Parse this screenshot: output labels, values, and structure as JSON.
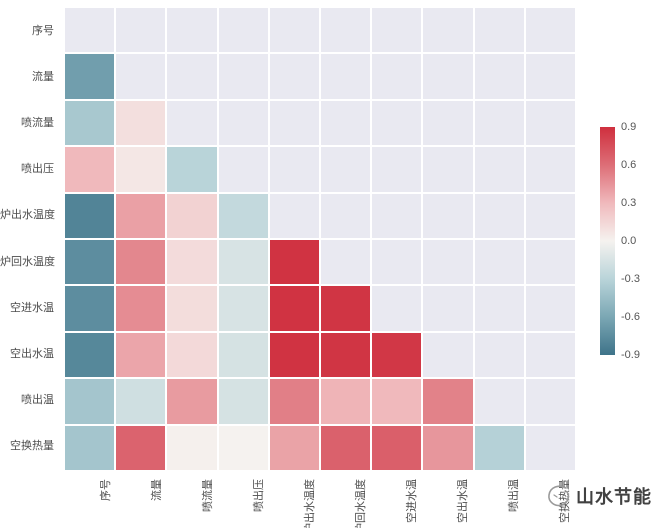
{
  "watermark": {
    "brand": "山水节能"
  },
  "chart_data": {
    "type": "heatmap",
    "title": "",
    "subtitle": "",
    "description": "lower-triangular correlation heatmap, diagonal and upper triangle masked",
    "labels": [
      "序号",
      "流量",
      "喷流量",
      "喷出压",
      "炉出水温度",
      "炉回水温度",
      "空进水温",
      "空出水温",
      "喷出温",
      "空换热量"
    ],
    "matrix": [
      [
        null,
        null,
        null,
        null,
        null,
        null,
        null,
        null,
        null,
        null
      ],
      [
        -0.65,
        null,
        null,
        null,
        null,
        null,
        null,
        null,
        null,
        null
      ],
      [
        -0.38,
        0.1,
        null,
        null,
        null,
        null,
        null,
        null,
        null,
        null
      ],
      [
        0.3,
        0.06,
        -0.3,
        null,
        null,
        null,
        null,
        null,
        null,
        null
      ],
      [
        -0.8,
        0.4,
        0.17,
        -0.25,
        null,
        null,
        null,
        null,
        null,
        null
      ],
      [
        -0.75,
        0.5,
        0.12,
        -0.15,
        0.88,
        null,
        null,
        null,
        null,
        null
      ],
      [
        -0.75,
        0.48,
        0.11,
        -0.15,
        0.88,
        0.87,
        null,
        null,
        null,
        null
      ],
      [
        -0.78,
        0.38,
        0.13,
        -0.16,
        0.88,
        0.87,
        0.86,
        null,
        null,
        null
      ],
      [
        -0.4,
        -0.19,
        0.42,
        -0.16,
        0.53,
        0.32,
        0.3,
        0.52,
        null,
        null
      ],
      [
        -0.4,
        0.65,
        0.01,
        0.0,
        0.39,
        0.66,
        0.67,
        0.44,
        -0.32,
        null
      ]
    ],
    "plot_background": "#e9e9f1",
    "gridline_color": "#ffffff",
    "colorbar": {
      "position": "right",
      "ticks": [
        "0.9",
        "0.6",
        "0.3",
        "0.0",
        "-0.3",
        "-0.6",
        "-0.9"
      ],
      "vmin": -0.9,
      "vmax": 0.9
    },
    "colormap": [
      {
        "v": -0.9,
        "color": "#3e7389"
      },
      {
        "v": -0.6,
        "color": "#7ba7b4"
      },
      {
        "v": -0.3,
        "color": "#b9d4d9"
      },
      {
        "v": 0.0,
        "color": "#f5f2ef"
      },
      {
        "v": 0.3,
        "color": "#f0b9bc"
      },
      {
        "v": 0.6,
        "color": "#dd6e77"
      },
      {
        "v": 0.9,
        "color": "#cf2f3e"
      }
    ]
  }
}
